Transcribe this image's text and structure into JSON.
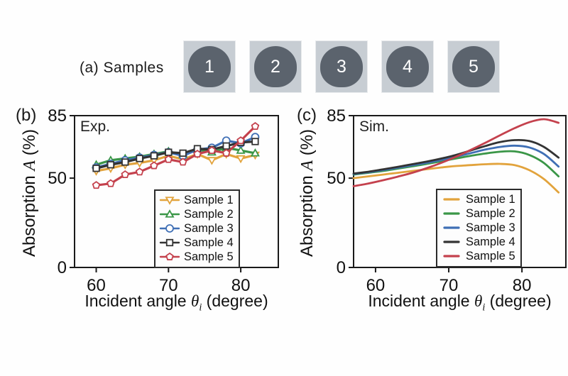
{
  "panel_a": {
    "label": "(a)",
    "title": "Samples",
    "samples": [
      "1",
      "2",
      "3",
      "4",
      "5"
    ],
    "photo_bg": "#c7cdd3",
    "disc_color": "#5b636d",
    "number_color": "#ffffff"
  },
  "chart_data": [
    {
      "panel_label": "(b)",
      "type": "line",
      "annotation": "Exp.",
      "xlabel_parts": {
        "prefix": "Incident angle ",
        "sym": "θ",
        "sub": "i",
        "suffix": " (degree)"
      },
      "ylabel_parts": {
        "prefix": "Absorption ",
        "sym": "A",
        "suffix": " (%)"
      },
      "xlim": [
        57,
        85.2
      ],
      "ylim": [
        0,
        85
      ],
      "xticks": [
        60,
        70,
        80
      ],
      "yticks": [
        0,
        50,
        85
      ],
      "grid": false,
      "smooth": false,
      "line_width": 3.2,
      "legend_position": "bottom-right",
      "x": [
        60,
        62,
        64,
        66,
        68,
        70,
        72,
        74,
        76,
        78,
        80,
        82
      ],
      "series": [
        {
          "name": "Sample 1",
          "color": "#e2a33c",
          "marker": "triangle-down",
          "values": [
            54,
            55.5,
            57.5,
            58.5,
            60,
            62.5,
            60.5,
            63.5,
            60,
            63.5,
            61,
            63
          ]
        },
        {
          "name": "Sample 2",
          "color": "#3a9647",
          "marker": "triangle-up",
          "values": [
            57.5,
            60,
            61,
            62,
            63.5,
            65,
            63,
            66,
            64.5,
            67,
            65.5,
            64
          ]
        },
        {
          "name": "Sample 3",
          "color": "#3f6fb5",
          "marker": "circle",
          "values": [
            56,
            58,
            60,
            61.5,
            63,
            64.5,
            62.5,
            66,
            67,
            71,
            69.5,
            73
          ]
        },
        {
          "name": "Sample 4",
          "color": "#333333",
          "marker": "square",
          "values": [
            55.5,
            57.5,
            59,
            61,
            62.5,
            64.5,
            64,
            66.5,
            66,
            68,
            70,
            70.5
          ]
        },
        {
          "name": "Sample 5",
          "color": "#c4414d",
          "marker": "pentagon",
          "values": [
            46,
            47,
            52,
            53.5,
            57,
            60.5,
            59,
            63.5,
            65.5,
            64,
            71,
            79
          ]
        }
      ]
    },
    {
      "panel_label": "(c)",
      "type": "line",
      "annotation": "Sim.",
      "xlabel_parts": {
        "prefix": "Incident angle ",
        "sym": "θ",
        "sub": "i",
        "suffix": " (degree)"
      },
      "ylabel_parts": {
        "prefix": "Absorption ",
        "sym": "A",
        "suffix": " (%)"
      },
      "xlim": [
        57,
        86
      ],
      "ylim": [
        0,
        85
      ],
      "xticks": [
        60,
        70,
        80
      ],
      "yticks": [
        0,
        50,
        85
      ],
      "grid": false,
      "smooth": true,
      "line_width": 2.8,
      "legend_position": "bottom-right",
      "x": [
        57,
        59,
        61,
        63,
        65,
        67,
        69,
        71,
        73,
        75,
        77,
        79,
        81,
        83,
        85
      ],
      "series": [
        {
          "name": "Sample 1",
          "color": "#e2a33c",
          "marker": "none",
          "values": [
            50,
            51,
            52,
            53,
            54,
            55,
            56,
            56.8,
            57.3,
            57.8,
            58,
            57.3,
            54.5,
            49.5,
            42
          ]
        },
        {
          "name": "Sample 2",
          "color": "#3a9647",
          "marker": "none",
          "values": [
            52,
            53,
            54,
            55.3,
            56.6,
            58,
            59.5,
            61,
            62.5,
            63.8,
            64.8,
            65,
            63,
            58.5,
            51
          ]
        },
        {
          "name": "Sample 3",
          "color": "#3f6fb5",
          "marker": "none",
          "values": [
            52.3,
            53.3,
            54.5,
            55.8,
            57.2,
            58.6,
            60.2,
            62,
            64,
            66,
            67.5,
            68.2,
            67.2,
            63.5,
            56.5
          ]
        },
        {
          "name": "Sample 4",
          "color": "#333333",
          "marker": "none",
          "values": [
            52.6,
            53.6,
            54.9,
            56.3,
            57.8,
            59.3,
            61,
            63,
            65.5,
            68,
            70.2,
            71.3,
            70.8,
            67.5,
            61.5
          ]
        },
        {
          "name": "Sample 5",
          "color": "#c4414d",
          "marker": "none",
          "values": [
            45.5,
            47,
            48.8,
            50.8,
            53,
            55.6,
            58.6,
            62,
            65.8,
            69.8,
            74,
            78,
            81.3,
            83,
            81
          ]
        }
      ]
    }
  ]
}
